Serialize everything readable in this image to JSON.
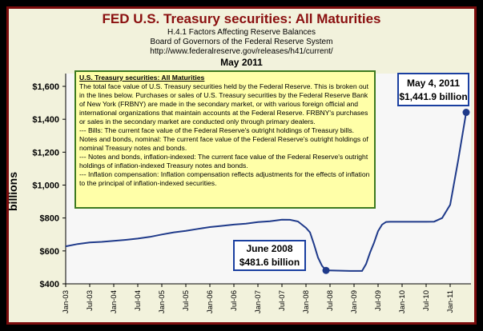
{
  "header": {
    "title": "FED U.S. Treasury securities: All Maturities",
    "subtitle_lines": [
      "H.4.1 Factors Affecting Reserve Balances",
      "Board of Governors of the Federal Reserve System",
      "http://www.federalreserve.gov/releases/h41/current/"
    ],
    "period": "May 2011"
  },
  "note": {
    "title": "U.S. Treasury securities: All Maturities",
    "paragraphs": [
      "The total face value of U.S. Treasury securities held by the Federal Reserve.  This is broken out in the lines below. Purchases or sales of U.S. Treasury securities by the Federal Reserve Bank of New York (FRBNY) are made in the secondary market, or with various foreign official and international organizations that maintain accounts at the Federal Reserve.  FRBNY's purchases or sales in the secondary market are conducted only through primary dealers.",
      "--- Bills: The current face value of the Federal Reserve's outright holdings of Treasury bills.",
      "Notes and bonds, nominal: The current face value of the Federal Reserve's outright holdings of nominal Treasury notes and bonds.",
      "--- Notes and bonds, inflation-indexed: The current face value of the Federal Reserve's outright holdings of inflation-indexed Treasury notes and bonds.",
      "--- Inflation compensation: Inflation compensation reflects adjustments for the effects of inflation to the principal of inflation-indexed securities."
    ]
  },
  "annotations": {
    "peak": {
      "line1": "May 4, 2011",
      "line2": "$1,441.9 billion"
    },
    "low": {
      "line1": "June 2008",
      "line2": "$481.6 billion"
    }
  },
  "colors": {
    "line": "#1f3a8a",
    "marker": "#1f3a8a",
    "title": "#8a0f0f",
    "panel": "#f2f2dc",
    "note_bg": "#ffffa8",
    "note_border": "#3d7a1e",
    "frame_border": "#7b0c0c",
    "callout_border": "#1a3fa0"
  },
  "chart_data": {
    "type": "line",
    "title": "FED U.S. Treasury securities: All Maturities",
    "xlabel": "",
    "ylabel": "billions",
    "ylim": [
      400,
      1600
    ],
    "yticks": [
      400,
      600,
      800,
      1000,
      1200,
      1400,
      1600
    ],
    "ytick_labels": [
      "$400",
      "$600",
      "$800",
      "$1,000",
      "$1,200",
      "$1,400",
      "$1,600"
    ],
    "xlim": [
      "2003-01",
      "2011-05"
    ],
    "xtick_labels": [
      "Jan-03",
      "Jul-03",
      "Jan-04",
      "Jul-04",
      "Jan-05",
      "Jul-05",
      "Jan-06",
      "Jul-06",
      "Jan-07",
      "Jul-07",
      "Jan-08",
      "Jul-08",
      "Jan-09",
      "Jul-09",
      "Jan-10",
      "Jul-10",
      "Jan-11"
    ],
    "xticks": [
      "2003-01",
      "2003-07",
      "2004-01",
      "2004-07",
      "2005-01",
      "2005-07",
      "2006-01",
      "2006-07",
      "2007-01",
      "2007-07",
      "2008-01",
      "2008-07",
      "2009-01",
      "2009-07",
      "2010-01",
      "2010-07",
      "2011-01"
    ],
    "grid": false,
    "legend": "none",
    "series": [
      {
        "x": [
          "2003-01",
          "2003-04",
          "2003-07",
          "2003-10",
          "2004-01",
          "2004-04",
          "2004-07",
          "2004-10",
          "2005-01",
          "2005-04",
          "2005-07",
          "2005-10",
          "2006-01",
          "2006-04",
          "2006-07",
          "2006-10",
          "2007-01",
          "2007-04",
          "2007-07",
          "2007-09",
          "2007-11",
          "2008-01",
          "2008-02",
          "2008-03",
          "2008-04",
          "2008-05",
          "2008-06",
          "2008-09",
          "2008-12",
          "2009-03",
          "2009-04",
          "2009-05",
          "2009-06",
          "2009-07",
          "2009-08",
          "2009-09",
          "2009-10",
          "2010-01",
          "2010-04",
          "2010-07",
          "2010-09",
          "2010-11",
          "2011-01",
          "2011-03",
          "2011-05"
        ],
        "values": [
          628,
          642,
          651,
          655,
          661,
          667,
          675,
          685,
          700,
          713,
          722,
          734,
          745,
          752,
          760,
          766,
          775,
          780,
          790,
          789,
          779,
          740,
          713,
          640,
          560,
          510,
          482,
          480,
          478,
          478,
          520,
          590,
          650,
          720,
          760,
          776,
          777,
          777,
          777,
          777,
          778,
          800,
          880,
          1150,
          1442
        ]
      }
    ],
    "markers": [
      {
        "x": "2008-06",
        "y": 481.6,
        "label": "June 2008"
      },
      {
        "x": "2011-05",
        "y": 1441.9,
        "label": "May 4, 2011"
      }
    ]
  }
}
